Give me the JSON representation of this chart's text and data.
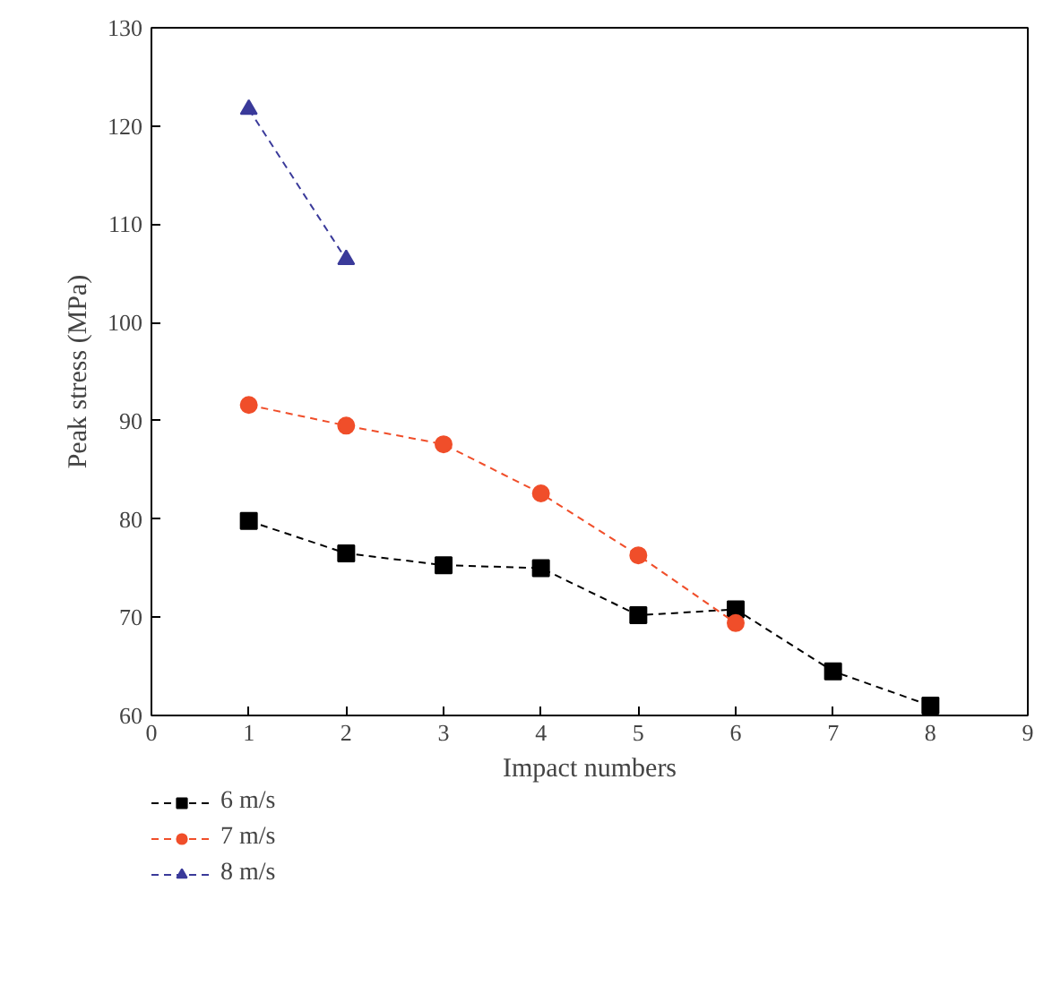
{
  "chart_data": {
    "type": "line",
    "xlabel": "Impact numbers",
    "ylabel": "Peak stress (MPa)",
    "xlim": [
      0,
      9
    ],
    "xticks": [
      0,
      1,
      2,
      3,
      4,
      5,
      6,
      7,
      8,
      9
    ],
    "ylim": [
      60,
      130
    ],
    "yticks": [
      60,
      70,
      80,
      90,
      100,
      110,
      120,
      130
    ],
    "grid": false,
    "legend": "bottom left",
    "line_style": "dashed",
    "series": [
      {
        "name": "6 m/s",
        "color": "#000000",
        "marker": "square",
        "x": [
          1,
          2,
          3,
          4,
          5,
          6,
          7,
          8
        ],
        "values": [
          79.8,
          76.5,
          75.3,
          75.0,
          70.2,
          70.8,
          64.5,
          61.0
        ]
      },
      {
        "name": "7 m/s",
        "color": "#f04e2a",
        "marker": "circle",
        "x": [
          1,
          2,
          3,
          4,
          5,
          6
        ],
        "values": [
          91.6,
          89.5,
          87.6,
          82.6,
          76.3,
          69.4
        ]
      },
      {
        "name": "8 m/s",
        "color": "#3a3a9a",
        "marker": "triangle",
        "x": [
          1,
          2
        ],
        "values": [
          121.7,
          106.4
        ]
      }
    ]
  }
}
